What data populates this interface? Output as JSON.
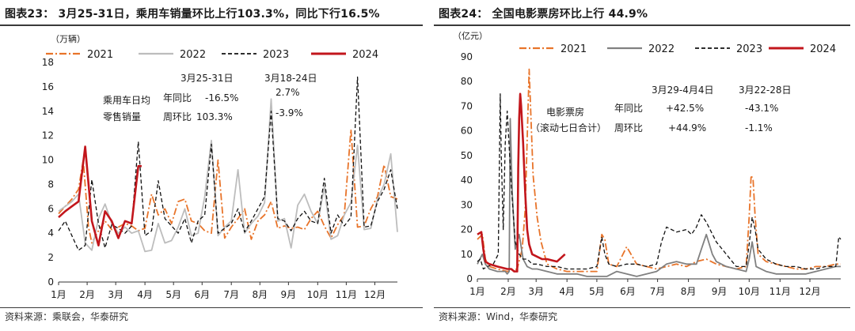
{
  "chart_data": [
    {
      "type": "line",
      "title": "图表23： 3月25-31日，乘用车销量环比上行103.3%，同比下行16.5%",
      "ylabel": "（万辆）",
      "ylim": [
        0,
        18
      ],
      "yticks": [
        0,
        2,
        4,
        6,
        8,
        10,
        12,
        14,
        16,
        18
      ],
      "xlim": [
        0,
        51
      ],
      "xticks": [
        "1月",
        "2月",
        "3月",
        "4月",
        "5月",
        "6月",
        "7月",
        "8月",
        "9月",
        "10月",
        "11月",
        "12月"
      ],
      "xtick_positions": [
        0,
        4.3,
        8.6,
        13,
        17.3,
        21.6,
        26,
        30.3,
        34.6,
        39,
        43.3,
        47.6
      ],
      "legend": [
        "2021",
        "2022",
        "2023",
        "2024"
      ],
      "series": [
        {
          "name": "2021",
          "color": "#e8742a",
          "dash": "dashdot",
          "x": [
            0,
            1,
            2,
            3,
            3.7,
            4.5,
            5,
            6,
            7,
            8,
            9,
            10,
            11,
            12,
            13,
            14,
            15,
            16,
            17,
            18,
            19,
            20,
            21,
            22,
            23,
            24,
            25,
            26,
            27,
            28,
            29,
            30,
            31,
            32,
            33,
            34,
            35,
            36,
            37,
            38,
            39,
            40,
            41,
            42,
            43,
            44,
            45,
            46,
            47,
            48,
            49,
            50,
            51
          ],
          "values": [
            5.6,
            6.2,
            6.8,
            7.6,
            10.0,
            4.5,
            3.2,
            4.2,
            5.0,
            4.3,
            4.5,
            4.8,
            4.6,
            4.2,
            4.4,
            7.2,
            5.5,
            6.0,
            4.8,
            6.6,
            6.8,
            5.0,
            4.8,
            4.2,
            4.0,
            10.0,
            3.6,
            4.5,
            5.2,
            6.0,
            3.5,
            5.0,
            5.5,
            6.6,
            4.4,
            4.6,
            4.4,
            4.5,
            4.3,
            5.2,
            5.8,
            4.6,
            3.6,
            4.7,
            5.5,
            12.5,
            4.5,
            4.6,
            6.0,
            7.0,
            9.6,
            7.0,
            6.8
          ]
        },
        {
          "name": "2022",
          "color": "#bdbdbd",
          "dash": "solid",
          "x": [
            0,
            1,
            2,
            3,
            4,
            5,
            6,
            7,
            8,
            9,
            10,
            11,
            12,
            13,
            14,
            15,
            16,
            17,
            18,
            19,
            20,
            21,
            22,
            23,
            24,
            25,
            26,
            27,
            28,
            29,
            30,
            31,
            32,
            33,
            34,
            35,
            36,
            37,
            38,
            39,
            40,
            41,
            42,
            43,
            44,
            45,
            46,
            47,
            48,
            49,
            50,
            51
          ],
          "values": [
            5.8,
            6.2,
            6.6,
            7.2,
            3.2,
            2.6,
            5.2,
            6.4,
            4.8,
            4.0,
            4.5,
            4.0,
            4.2,
            2.5,
            2.6,
            4.8,
            3.2,
            3.4,
            4.5,
            6.0,
            3.8,
            4.0,
            7.0,
            11.6,
            3.8,
            4.5,
            5.0,
            9.2,
            4.0,
            4.8,
            5.4,
            6.5,
            15.0,
            5.0,
            5.2,
            2.8,
            6.3,
            7.2,
            5.8,
            4.8,
            7.8,
            3.5,
            3.8,
            5.5,
            6.5,
            11.2,
            4.3,
            4.4,
            6.8,
            8.0,
            10.5,
            4.1
          ]
        },
        {
          "name": "2023",
          "color": "#111111",
          "dash": "dashed",
          "x": [
            0,
            1,
            2,
            3,
            4,
            5,
            6,
            7,
            8,
            9,
            10,
            11,
            12,
            13,
            14,
            15,
            16,
            17,
            18,
            19,
            20,
            21,
            22,
            23,
            24,
            25,
            26,
            27,
            28,
            29,
            30,
            31,
            32,
            33,
            34,
            35,
            36,
            37,
            38,
            39,
            40,
            41,
            42,
            43,
            44,
            45,
            46,
            47,
            48,
            49,
            50,
            51
          ],
          "values": [
            4.2,
            5.0,
            3.8,
            2.6,
            3.0,
            8.4,
            4.8,
            2.8,
            4.7,
            4.4,
            4.0,
            4.6,
            11.5,
            3.8,
            4.2,
            8.3,
            5.2,
            4.6,
            4.0,
            5.2,
            3.2,
            5.0,
            5.5,
            11.3,
            4.0,
            4.4,
            4.8,
            6.0,
            4.1,
            5.0,
            6.0,
            7.0,
            14.0,
            5.2,
            5.0,
            4.2,
            5.2,
            5.8,
            5.0,
            4.8,
            8.5,
            4.0,
            5.5,
            4.6,
            5.3,
            16.8,
            4.5,
            4.6,
            6.6,
            7.6,
            9.2,
            6.0
          ]
        },
        {
          "name": "2024",
          "color": "#c2161c",
          "dash": "solid",
          "x": [
            0,
            1,
            2,
            3,
            4,
            5,
            6,
            7,
            8,
            9,
            10,
            11,
            12,
            12.5
          ],
          "values": [
            5.3,
            5.8,
            6.2,
            6.6,
            11.1,
            5.0,
            3.0,
            5.8,
            5.0,
            3.6,
            5.0,
            4.8,
            9.5,
            9.5
          ]
        }
      ],
      "annotation": {
        "row_label_1": "乘用车日均",
        "row_label_2": "零售销量",
        "col_1": "3月25-31日",
        "col_2": "3月18-24日",
        "label_yoy": "年同比",
        "label_wow": "周环比",
        "yoy_1": "-16.5%",
        "yoy_2": "2.7%",
        "wow_1": "103.3%",
        "wow_2": "-3.9%"
      }
    },
    {
      "type": "line",
      "title": "图表24： 全国电影票房环比上行 44.9%",
      "ylabel": "（亿元）",
      "ylim": [
        0,
        90
      ],
      "yticks": [
        0,
        10,
        20,
        30,
        40,
        50,
        60,
        70,
        80,
        90
      ],
      "xlim": [
        0,
        365
      ],
      "xticks": [
        "1月",
        "2月",
        "3月",
        "4月",
        "5月",
        "6月",
        "7月",
        "8月",
        "9月",
        "10月",
        "11月",
        "12月"
      ],
      "xtick_positions": [
        0,
        31,
        59,
        90,
        120,
        151,
        181,
        212,
        243,
        273,
        304,
        334
      ],
      "legend": [
        "2021",
        "2022",
        "2023",
        "2024"
      ],
      "series": [
        {
          "name": "2021",
          "color": "#e8742a",
          "dash": "dashdot",
          "x": [
            0,
            5,
            8,
            12,
            20,
            30,
            40,
            45,
            48,
            52,
            56,
            60,
            64,
            70,
            80,
            90,
            100,
            110,
            120,
            125,
            128,
            132,
            140,
            150,
            160,
            170,
            180,
            190,
            200,
            210,
            220,
            230,
            240,
            250,
            260,
            270,
            273,
            275,
            277,
            279,
            282,
            290,
            300,
            310,
            320,
            330,
            340,
            350,
            360,
            365
          ],
          "values": [
            16,
            18,
            8,
            5,
            4,
            3,
            4,
            12,
            28,
            85,
            42,
            25,
            15,
            6,
            4,
            3,
            3,
            3,
            3,
            18,
            16,
            6,
            5,
            13,
            6,
            5,
            4,
            5,
            6,
            5,
            7,
            8,
            6,
            5,
            4,
            5,
            25,
            42,
            40,
            25,
            10,
            7,
            6,
            5,
            4,
            4,
            5,
            5,
            6,
            6
          ]
        },
        {
          "name": "2022",
          "color": "#808080",
          "dash": "solid",
          "x": [
            0,
            5,
            8,
            12,
            20,
            28,
            30,
            32,
            33,
            35,
            38,
            42,
            46,
            50,
            55,
            60,
            70,
            80,
            90,
            100,
            110,
            120,
            130,
            140,
            150,
            160,
            170,
            180,
            190,
            200,
            210,
            220,
            225,
            230,
            236,
            240,
            250,
            260,
            270,
            273,
            276,
            280,
            290,
            300,
            310,
            320,
            330,
            340,
            350,
            360,
            365
          ],
          "values": [
            6,
            10,
            6,
            4,
            3,
            3,
            2,
            3,
            65,
            35,
            12,
            18,
            8,
            5,
            4,
            4,
            3,
            2,
            2,
            2,
            1,
            1,
            1,
            3,
            2,
            1,
            2,
            3,
            6,
            7,
            6,
            6,
            12,
            18,
            10,
            7,
            5,
            4,
            3,
            8,
            15,
            5,
            3,
            2,
            2,
            2,
            2,
            3,
            4,
            5,
            5
          ]
        },
        {
          "name": "2023",
          "color": "#111111",
          "dash": "dashed",
          "x": [
            0,
            3,
            6,
            10,
            16,
            21,
            23,
            24,
            26,
            28,
            30,
            34,
            38,
            42,
            46,
            50,
            55,
            60,
            70,
            80,
            90,
            100,
            110,
            120,
            125,
            128,
            132,
            140,
            150,
            160,
            170,
            180,
            185,
            190,
            200,
            210,
            215,
            220,
            225,
            230,
            240,
            250,
            260,
            270,
            273,
            276,
            279,
            282,
            290,
            300,
            310,
            320,
            330,
            340,
            350,
            360,
            363,
            365
          ],
          "values": [
            7,
            8,
            4,
            5,
            6,
            10,
            75,
            50,
            20,
            55,
            68,
            38,
            15,
            10,
            8,
            8,
            6,
            6,
            5,
            5,
            4,
            4,
            4,
            5,
            17,
            10,
            6,
            5,
            6,
            6,
            5,
            6,
            15,
            21,
            19,
            20,
            18,
            21,
            26,
            23,
            15,
            10,
            5,
            5,
            14,
            25,
            20,
            12,
            8,
            6,
            5,
            5,
            4,
            4,
            5,
            5,
            17,
            16
          ]
        },
        {
          "name": "2024",
          "color": "#c2161c",
          "dash": "solid",
          "x": [
            0,
            4,
            6,
            8,
            12,
            20,
            30,
            34,
            37,
            40,
            41,
            42,
            43,
            44,
            46,
            48,
            50,
            52,
            55,
            60,
            65,
            70,
            80,
            88
          ],
          "values": [
            18,
            19,
            12,
            7,
            6,
            5,
            4,
            4,
            3,
            3,
            45,
            65,
            75,
            70,
            55,
            35,
            20,
            14,
            10,
            9,
            8,
            8,
            7,
            10
          ]
        }
      ],
      "annotation": {
        "row_label_1": "电影票房",
        "row_label_2": "（滚动七日合计）",
        "col_1": "3月29-4月4日",
        "col_2": "3月22-28日",
        "label_yoy": "年同比",
        "label_wow": "周环比",
        "yoy_1": "+42.5%",
        "yoy_2": "-43.1%",
        "wow_1": "+44.9%",
        "wow_2": "-1.1%"
      }
    }
  ],
  "left": {
    "source": "资料来源：乘联会，华泰研究"
  },
  "right": {
    "source": "资料来源：Wind，华泰研究"
  }
}
